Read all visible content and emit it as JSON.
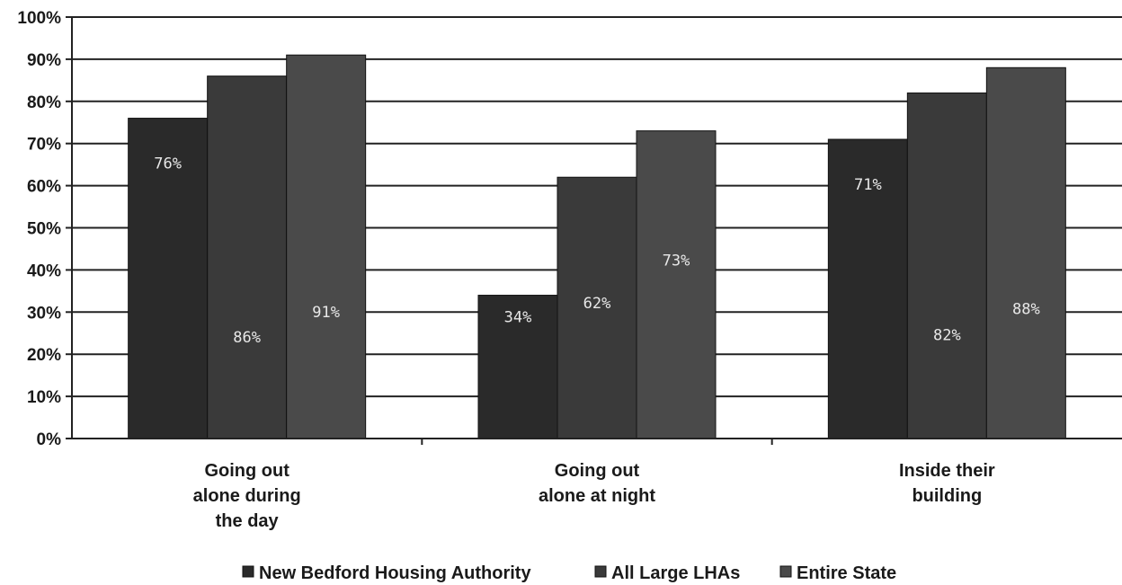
{
  "chart_data": {
    "type": "bar",
    "categories": [
      [
        "Going out",
        "alone during",
        "the day"
      ],
      [
        "Going out",
        "alone at night"
      ],
      [
        "Inside their",
        "building"
      ]
    ],
    "series": [
      {
        "name": "New Bedford Housing Authority",
        "values": [
          76,
          34,
          71
        ],
        "labels": [
          "76%",
          "34%",
          "71%"
        ],
        "color": "#2a2a2a"
      },
      {
        "name": "All Large LHAs",
        "values": [
          86,
          62,
          82
        ],
        "labels": [
          "86%",
          "62%",
          "82%"
        ],
        "color": "#3a3a3a"
      },
      {
        "name": "Entire State",
        "values": [
          91,
          73,
          88
        ],
        "labels": [
          "91%",
          "73%",
          "88%"
        ],
        "color": "#4a4a4a"
      }
    ],
    "y_ticks": [
      "0%",
      "10%",
      "20%",
      "30%",
      "40%",
      "50%",
      "60%",
      "70%",
      "80%",
      "90%",
      "100%"
    ],
    "ylim": [
      0,
      100
    ],
    "grid": true,
    "legend_position": "bottom",
    "legend_marker": "■"
  }
}
